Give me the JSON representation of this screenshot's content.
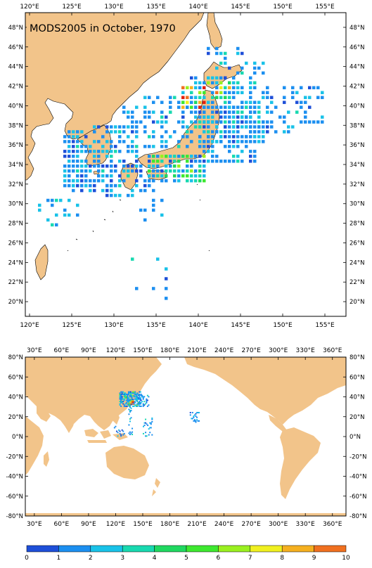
{
  "title": "MODS2005 in October, 1970",
  "colors": {
    "land": "#f2c48a",
    "ocean": "#ffffff",
    "frame": "#000000",
    "scale": [
      "#1e4fd8",
      "#1c8ff0",
      "#19c2e8",
      "#18d9b0",
      "#20d860",
      "#3ee830",
      "#9af020",
      "#f0f020",
      "#f5b020",
      "#f07020",
      "#e02010"
    ]
  },
  "regional_map": {
    "lon_range": [
      119.5,
      157.5
    ],
    "lat_range": [
      18.5,
      49.5
    ],
    "lon_ticks": [
      "120°E",
      "125°E",
      "130°E",
      "135°E",
      "140°E",
      "145°E",
      "150°E",
      "155°E"
    ],
    "lon_tick_values": [
      120,
      125,
      130,
      135,
      140,
      145,
      150,
      155
    ],
    "lat_ticks": [
      "20°N",
      "22°N",
      "24°N",
      "26°N",
      "28°N",
      "30°N",
      "32°N",
      "34°N",
      "36°N",
      "38°N",
      "40°N",
      "42°N",
      "44°N",
      "46°N",
      "48°N"
    ],
    "lat_tick_values": [
      20,
      22,
      24,
      26,
      28,
      30,
      32,
      34,
      36,
      38,
      40,
      42,
      44,
      46,
      48
    ]
  },
  "global_map": {
    "lon_range": [
      20,
      375
    ],
    "lat_range": [
      -80,
      80
    ],
    "lon_ticks": [
      "30°E",
      "60°E",
      "90°E",
      "120°E",
      "150°E",
      "180°E",
      "210°E",
      "240°E",
      "270°E",
      "300°E",
      "330°E",
      "360°E"
    ],
    "lon_tick_values": [
      30,
      60,
      90,
      120,
      150,
      180,
      210,
      240,
      270,
      300,
      330,
      360
    ],
    "lat_ticks": [
      "80°N",
      "60°N",
      "40°N",
      "20°N",
      "0°N",
      "-20°N",
      "-40°N",
      "-60°N",
      "-80°N"
    ],
    "lat_tick_values": [
      80,
      60,
      40,
      20,
      0,
      -20,
      -40,
      -60,
      -80
    ]
  },
  "colorbar": {
    "labels": [
      "0",
      "1",
      "2",
      "3",
      "4",
      "5",
      "6",
      "7",
      "8",
      "9",
      "10"
    ],
    "bins": [
      {
        "from": 0,
        "to": 1,
        "color": "#1e4fd8"
      },
      {
        "from": 1,
        "to": 2,
        "color": "#1c8ff0"
      },
      {
        "from": 2,
        "to": 3,
        "color": "#19c2e8"
      },
      {
        "from": 3,
        "to": 4,
        "color": "#18d9b0"
      },
      {
        "from": 4,
        "to": 5,
        "color": "#20d860"
      },
      {
        "from": 5,
        "to": 6,
        "color": "#3ee830"
      },
      {
        "from": 6,
        "to": 7,
        "color": "#9af020"
      },
      {
        "from": 7,
        "to": 8,
        "color": "#f0f020"
      },
      {
        "from": 8,
        "to": 9,
        "color": "#f5b020"
      },
      {
        "from": 9,
        "to": 10,
        "color": "#f07020"
      }
    ]
  }
}
